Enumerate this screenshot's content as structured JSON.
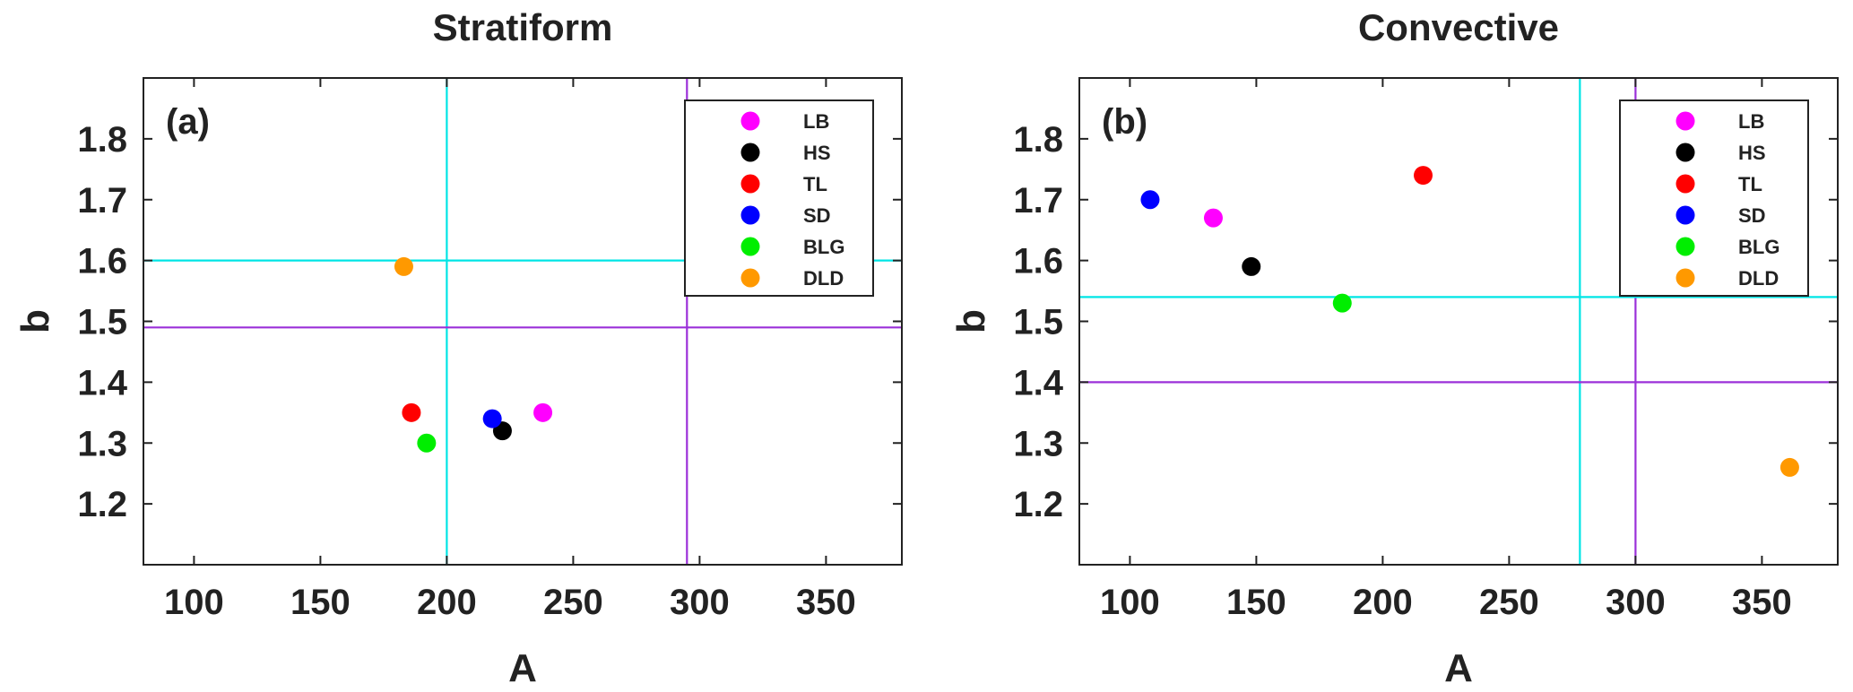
{
  "chart_data": [
    {
      "type": "scatter",
      "title": "Stratiform",
      "panel_label": "(a)",
      "xlabel": "A",
      "ylabel": "b",
      "xlim": [
        80,
        380
      ],
      "ylim": [
        1.1,
        1.9
      ],
      "xticks": [
        100,
        150,
        200,
        250,
        300,
        350
      ],
      "yticks": [
        1.2,
        1.3,
        1.4,
        1.5,
        1.6,
        1.7,
        1.8
      ],
      "legend_position": "top-right",
      "grid": false,
      "series": [
        {
          "name": "LB",
          "color": "#ff00ff",
          "x": 238,
          "y": 1.35
        },
        {
          "name": "HS",
          "color": "#000000",
          "x": 222,
          "y": 1.32
        },
        {
          "name": "TL",
          "color": "#ff0000",
          "x": 186,
          "y": 1.35
        },
        {
          "name": "SD",
          "color": "#0000ff",
          "x": 218,
          "y": 1.34
        },
        {
          "name": "BLG",
          "color": "#00ee00",
          "x": 192,
          "y": 1.3
        },
        {
          "name": "DLD",
          "color": "#ff9900",
          "x": 183,
          "y": 1.59
        }
      ],
      "reference_lines": [
        {
          "orientation": "vertical",
          "value": 200,
          "color": "#00e5e5"
        },
        {
          "orientation": "vertical",
          "value": 295,
          "color": "#9b30d9"
        },
        {
          "orientation": "horizontal",
          "value": 1.6,
          "color": "#00e5e5"
        },
        {
          "orientation": "horizontal",
          "value": 1.49,
          "color": "#9b30d9"
        }
      ]
    },
    {
      "type": "scatter",
      "title": "Convective",
      "panel_label": "(b)",
      "xlabel": "A",
      "ylabel": "b",
      "xlim": [
        80,
        380
      ],
      "ylim": [
        1.1,
        1.9
      ],
      "xticks": [
        100,
        150,
        200,
        250,
        300,
        350
      ],
      "yticks": [
        1.2,
        1.3,
        1.4,
        1.5,
        1.6,
        1.7,
        1.8
      ],
      "legend_position": "top-right",
      "grid": false,
      "series": [
        {
          "name": "LB",
          "color": "#ff00ff",
          "x": 133,
          "y": 1.67
        },
        {
          "name": "HS",
          "color": "#000000",
          "x": 148,
          "y": 1.59
        },
        {
          "name": "TL",
          "color": "#ff0000",
          "x": 216,
          "y": 1.74
        },
        {
          "name": "SD",
          "color": "#0000ff",
          "x": 108,
          "y": 1.7
        },
        {
          "name": "BLG",
          "color": "#00ee00",
          "x": 184,
          "y": 1.53
        },
        {
          "name": "DLD",
          "color": "#ff9900",
          "x": 361,
          "y": 1.26
        }
      ],
      "reference_lines": [
        {
          "orientation": "vertical",
          "value": 278,
          "color": "#00e5e5"
        },
        {
          "orientation": "vertical",
          "value": 300,
          "color": "#9b30d9"
        },
        {
          "orientation": "horizontal",
          "value": 1.54,
          "color": "#00e5e5"
        },
        {
          "orientation": "horizontal",
          "value": 1.4,
          "color": "#9b30d9"
        }
      ]
    }
  ]
}
